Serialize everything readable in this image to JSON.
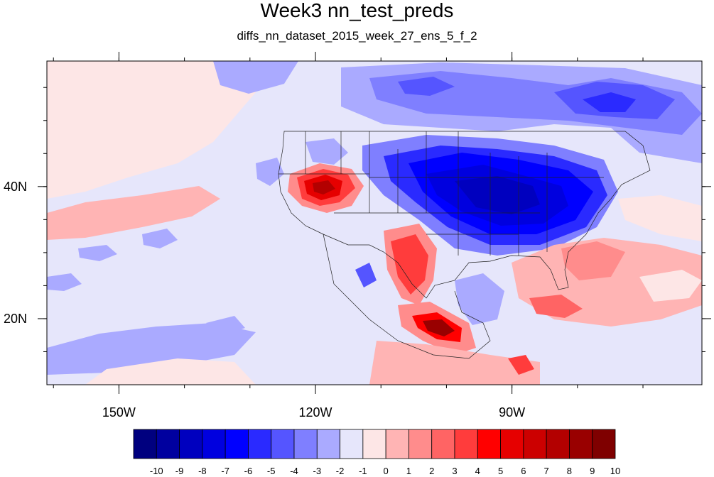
{
  "title": "Week3 nn_test_preds",
  "subtitle": "diffs_nn_dataset_2015_week_27_ens_5_f_2",
  "map": {
    "lon_range": [
      -161,
      -61
    ],
    "lat_range": [
      10,
      59
    ],
    "x_ticks": [
      {
        "lon": -150,
        "label": "150W"
      },
      {
        "lon": -120,
        "label": "120W"
      },
      {
        "lon": -90,
        "label": "90W"
      }
    ],
    "y_ticks": [
      {
        "lat": 40,
        "label": "40N"
      },
      {
        "lat": 20,
        "label": "20N"
      }
    ],
    "background_color": "#e6e6fb"
  },
  "colorbar": {
    "labels": [
      "-10",
      "-9",
      "-8",
      "-7",
      "-6",
      "-5",
      "-4",
      "-3",
      "-2",
      "-1",
      "0",
      "1",
      "2",
      "3",
      "4",
      "5",
      "6",
      "7",
      "8",
      "9",
      "10"
    ],
    "colors": [
      "#00007f",
      "#00009f",
      "#0000bf",
      "#0000df",
      "#0000ff",
      "#2a2aff",
      "#5555ff",
      "#7f7fff",
      "#aaaaff",
      "#e6e6fb",
      "#fde6e6",
      "#ffb4b4",
      "#ff8c8c",
      "#ff6464",
      "#ff3c3c",
      "#ff0000",
      "#e60000",
      "#cc0000",
      "#b30000",
      "#990000",
      "#7f0000"
    ]
  }
}
